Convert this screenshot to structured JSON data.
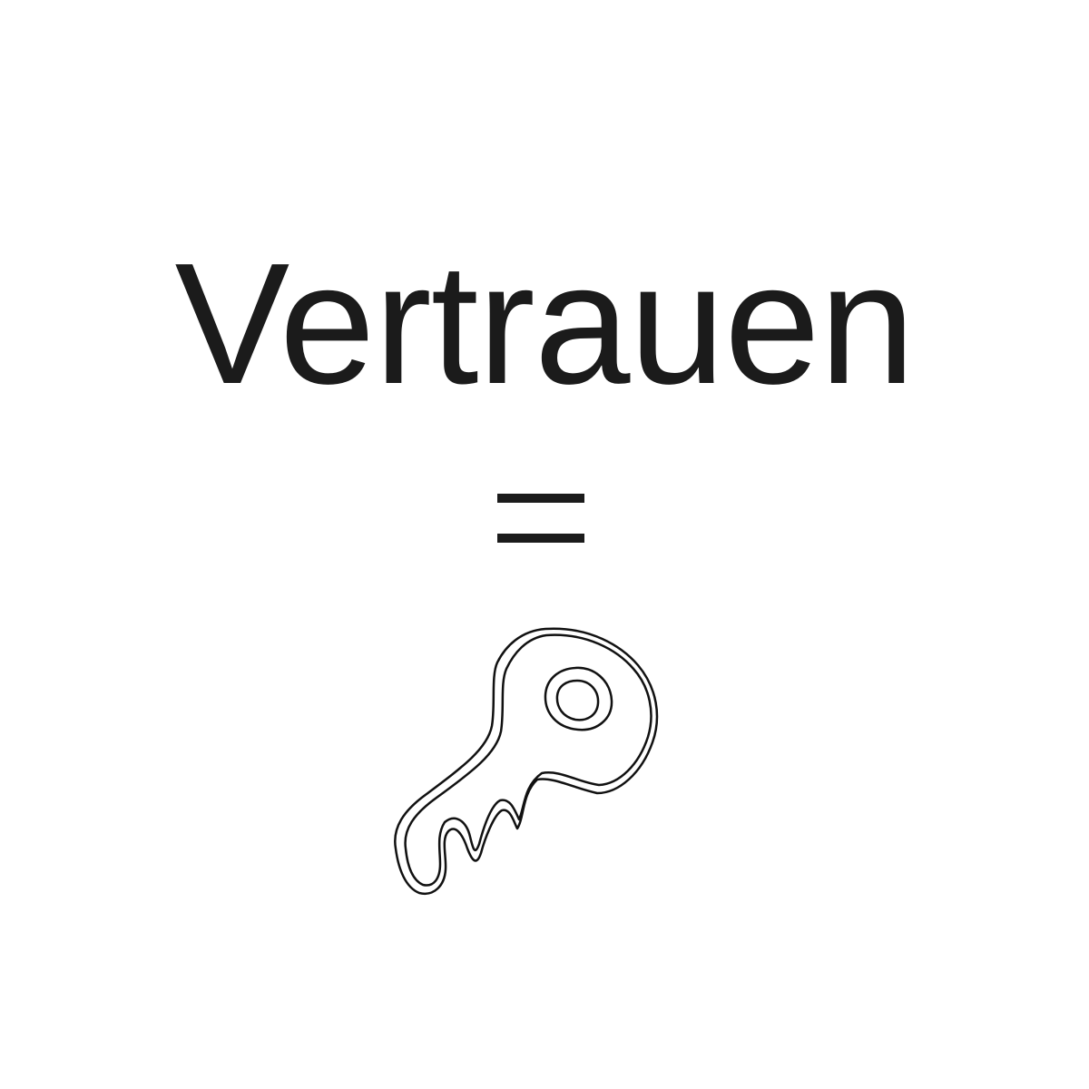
{
  "headline": "Vertrauen",
  "operator": "=",
  "icon": {
    "name": "key-icon",
    "stroke_color": "#111111"
  },
  "colors": {
    "background": "#ffffff",
    "text": "#1b1b1b"
  }
}
